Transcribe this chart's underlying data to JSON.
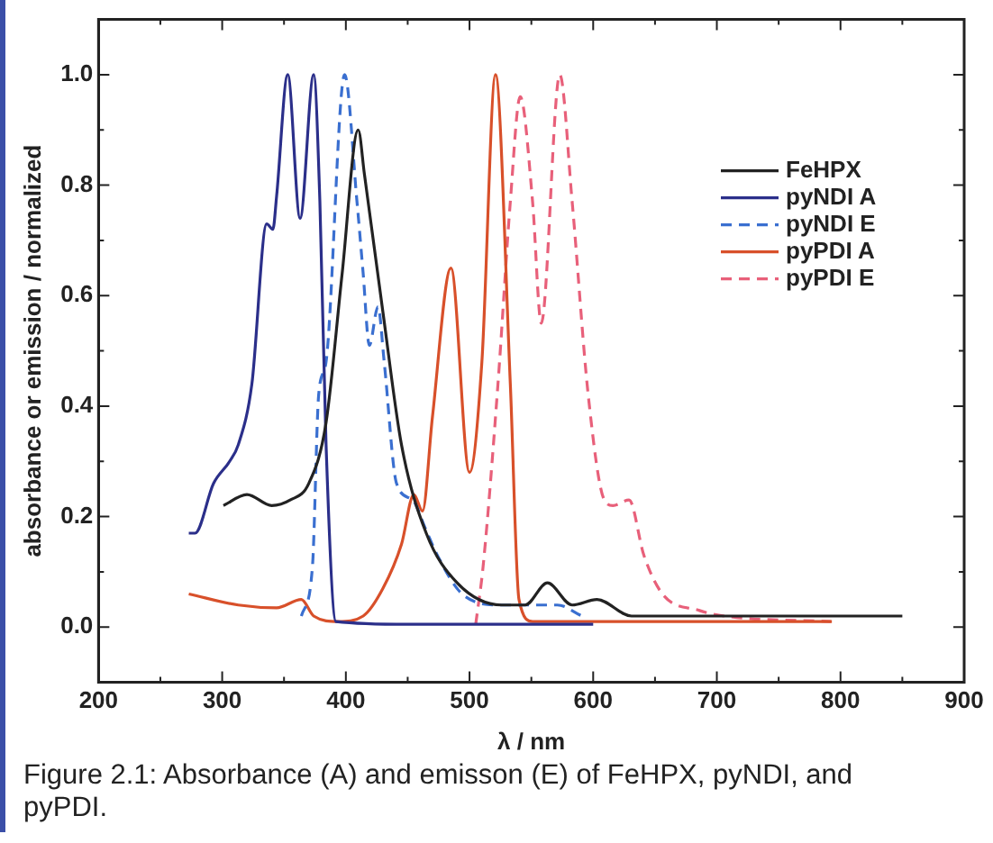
{
  "chart_data": {
    "type": "line",
    "xlabel": "λ / nm",
    "ylabel": "absorbance or emission / normalized",
    "xlim": [
      200,
      900
    ],
    "ylim": [
      -0.1,
      1.1
    ],
    "xticks": [
      200,
      {
        "value": 250,
        "label": null
      },
      300,
      {
        "value": 350,
        "label": null
      },
      400,
      {
        "value": 450,
        "label": null
      },
      500,
      {
        "value": 550,
        "label": null
      },
      600,
      {
        "value": 650,
        "label": null
      },
      700,
      {
        "value": 750,
        "label": null
      },
      800,
      {
        "value": 850,
        "label": null
      },
      900
    ],
    "yticks": [
      {
        "value": 0,
        "label": "0.0"
      },
      {
        "value": 0.1,
        "label": null
      },
      {
        "value": 0.2,
        "label": "0.2"
      },
      {
        "value": 0.3,
        "label": null
      },
      {
        "value": 0.4,
        "label": "0.4"
      },
      {
        "value": 0.5,
        "label": null
      },
      {
        "value": 0.6,
        "label": "0.6"
      },
      {
        "value": 0.7,
        "label": null
      },
      {
        "value": 0.8,
        "label": "0.8"
      },
      {
        "value": 0.9,
        "label": null
      },
      {
        "value": 1.0,
        "label": "1.0"
      }
    ],
    "grid": false,
    "legend": "right",
    "marker": "none",
    "annotations": [
      "Figure 2.1: Absorbance (A) and emisson (E) of FeHPX, pyNDI, and pyPDI."
    ],
    "series": [
      {
        "name": "FeHPX",
        "color": "#222222",
        "line_style": "solid",
        "x": [
          301,
          320,
          340,
          355,
          370,
          384,
          397,
          410,
          415,
          430,
          445,
          465,
          490,
          526,
          545,
          563,
          583,
          603,
          631,
          700,
          850
        ],
        "values": [
          0.22,
          0.24,
          0.22,
          0.23,
          0.26,
          0.37,
          0.64,
          0.9,
          0.82,
          0.57,
          0.33,
          0.17,
          0.08,
          0.04,
          0.04,
          0.08,
          0.04,
          0.05,
          0.02,
          0.02,
          0.02
        ]
      },
      {
        "name": "pyNDI A",
        "color": "#2b2f8a",
        "line_style": "solid",
        "x": [
          273,
          278,
          293,
          306,
          313,
          324,
          336,
          341,
          344,
          353,
          363,
          374,
          379,
          384,
          392,
          450,
          600
        ],
        "values": [
          0.17,
          0.17,
          0.26,
          0.3,
          0.33,
          0.44,
          0.73,
          0.72,
          0.78,
          1.0,
          0.74,
          1.0,
          0.77,
          0.33,
          0.01,
          0.005,
          0.005
        ]
      },
      {
        "name": "pyNDI E",
        "color": "#3a6fd0",
        "line_style": "dashed",
        "x": [
          364,
          373,
          378,
          384,
          399,
          409,
          414,
          419,
          426,
          431,
          441,
          454,
          464,
          474,
          494,
          525,
          571,
          591
        ],
        "values": [
          0.02,
          0.11,
          0.42,
          0.48,
          1.0,
          0.77,
          0.64,
          0.51,
          0.58,
          0.48,
          0.26,
          0.23,
          0.18,
          0.13,
          0.06,
          0.04,
          0.04,
          0.02
        ]
      },
      {
        "name": "pyPDI A",
        "color": "#d8502a",
        "line_style": "solid",
        "x": [
          273,
          313,
          344,
          364,
          374,
          394,
          414,
          430,
          445,
          455,
          462,
          470,
          485,
          500,
          510,
          521,
          533,
          540,
          551,
          793
        ],
        "values": [
          0.06,
          0.04,
          0.035,
          0.05,
          0.02,
          0.01,
          0.02,
          0.07,
          0.15,
          0.24,
          0.21,
          0.38,
          0.65,
          0.28,
          0.48,
          1.0,
          0.44,
          0.05,
          0.01,
          0.01
        ]
      },
      {
        "name": "pyPDI E",
        "color": "#e8607a",
        "line_style": "dashed",
        "x": [
          505,
          511,
          523,
          533,
          541,
          551,
          558,
          573,
          583,
          596,
          609,
          616,
          629,
          641,
          656,
          686,
          706,
          792
        ],
        "values": [
          0.005,
          0.11,
          0.44,
          0.77,
          0.96,
          0.77,
          0.55,
          1.0,
          0.77,
          0.42,
          0.23,
          0.22,
          0.23,
          0.13,
          0.06,
          0.03,
          0.02,
          0.01
        ]
      }
    ]
  }
}
